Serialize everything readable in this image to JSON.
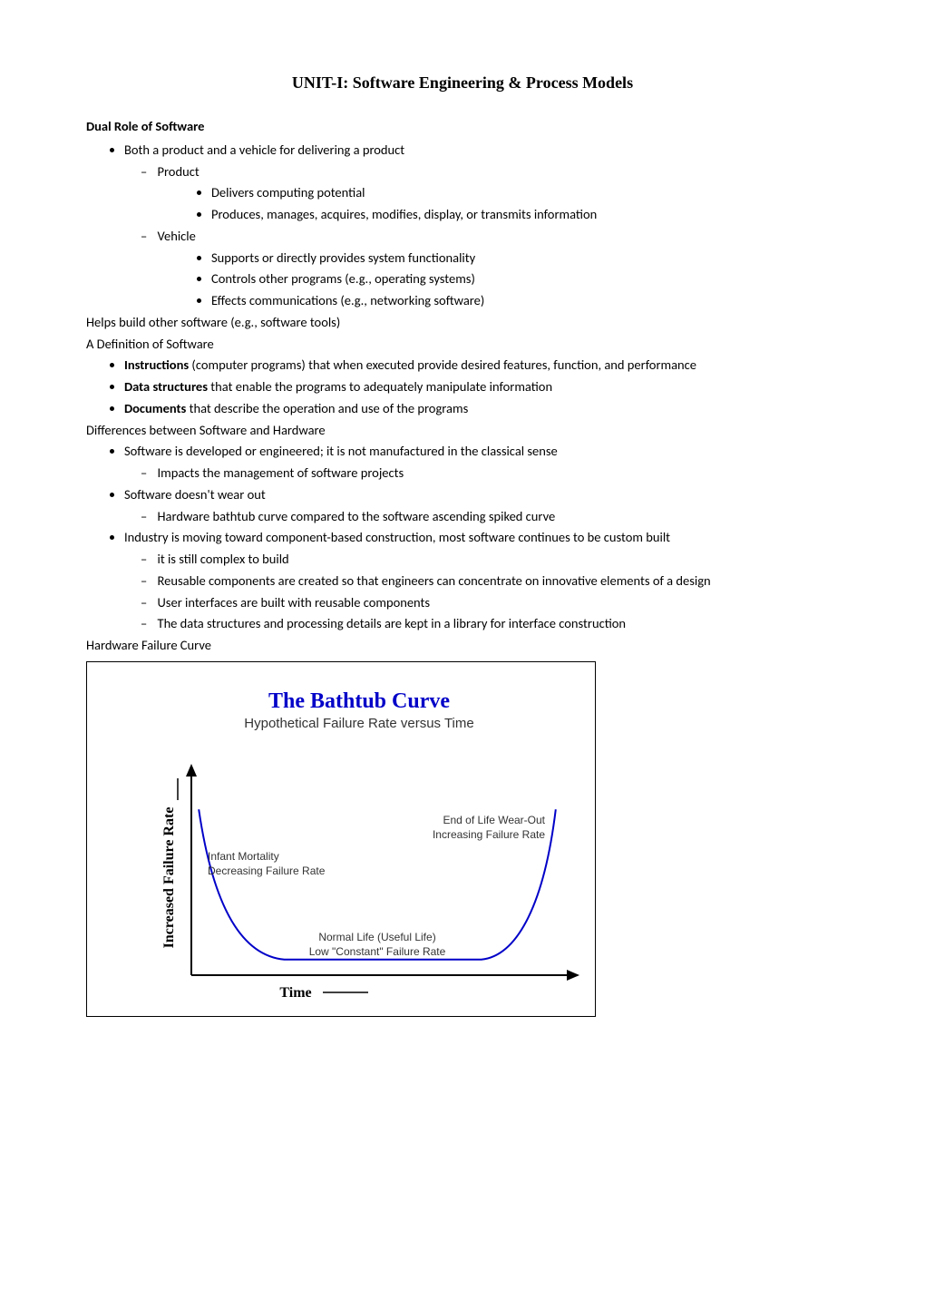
{
  "title": "UNIT-I: Software Engineering & Process Models",
  "sec1": {
    "heading": "Dual Role of Software",
    "b1": "Both a product and a vehicle for delivering a product",
    "d1": "Product",
    "d1b1": "Delivers computing potential",
    "d1b2": "Produces, manages, acquires, modifies, display, or transmits information",
    "d2": "Vehicle",
    "d2b1": "Supports or directly provides system functionality",
    "d2b2": "Controls other programs (e.g., operating systems)",
    "d2b3": "Effects communications (e.g., networking software)"
  },
  "line_helps": "Helps build other software (e.g., software tools)",
  "sec2": {
    "heading": "A Definition of Software",
    "b1_bold": "Instructions",
    "b1_rest": " (computer programs) that when executed provide desired features, function, and performance",
    "b2_bold": "Data structures",
    "b2_rest": " that enable the programs to adequately manipulate information",
    "b3_bold": "Documents",
    "b3_rest": " that describe the operation and use of the programs"
  },
  "sec3": {
    "heading": "Differences between Software and Hardware",
    "b1": "Software is developed or engineered; it is not manufactured in the classical sense",
    "b1d1": "Impacts the management of software projects",
    "b2": "Software doesn't wear out",
    "b2d1": "Hardware bathtub curve compared to the software ascending spiked curve",
    "b3": "Industry is moving toward component-based construction, most software continues to be custom built",
    "b3d1": "it is still complex to build",
    "b3d2": "Reusable components are created so that engineers can concentrate on innovative elements of a design",
    "b3d3": "User interfaces are built with reusable components",
    "b3d4": "The data structures and processing details are kept in a library for interface construction"
  },
  "sec4_heading": "Hardware Failure Curve",
  "chart": {
    "type": "bathtub-curve",
    "title": "The Bathtub Curve",
    "title_color": "#0000c8",
    "title_fontsize": 24,
    "subtitle": "Hypothetical Failure Rate versus Time",
    "subtitle_fontsize": 15,
    "ylabel": "Increased Failure Rate",
    "xlabel": "Time",
    "left_label": "Infant Mortality\nDecreasing Failure Rate",
    "middle_label": "Normal Life (Useful Life)\nLow \"Constant\" Failure Rate",
    "right_label": "End of Life Wear-Out\nIncreasing Failure Rate",
    "curve_color": "#0000c8",
    "curve_width": 2,
    "axis_color": "#000000",
    "axis_width": 2,
    "background_color": "#ffffff",
    "label_fontfamily": "Times New Roman",
    "axis_label_fontweight": "bold",
    "annotation_fontfamily": "Arial",
    "annotation_fontsize": 12,
    "annotation_color": "#333333",
    "curve_points": {
      "infant_start_y": 0.85,
      "flat_y": 0.08,
      "flat_start_x": 0.25,
      "flat_end_x": 0.78,
      "wearout_end_y": 0.85
    },
    "x_range": [
      0,
      1
    ],
    "y_range": [
      0,
      1
    ]
  }
}
